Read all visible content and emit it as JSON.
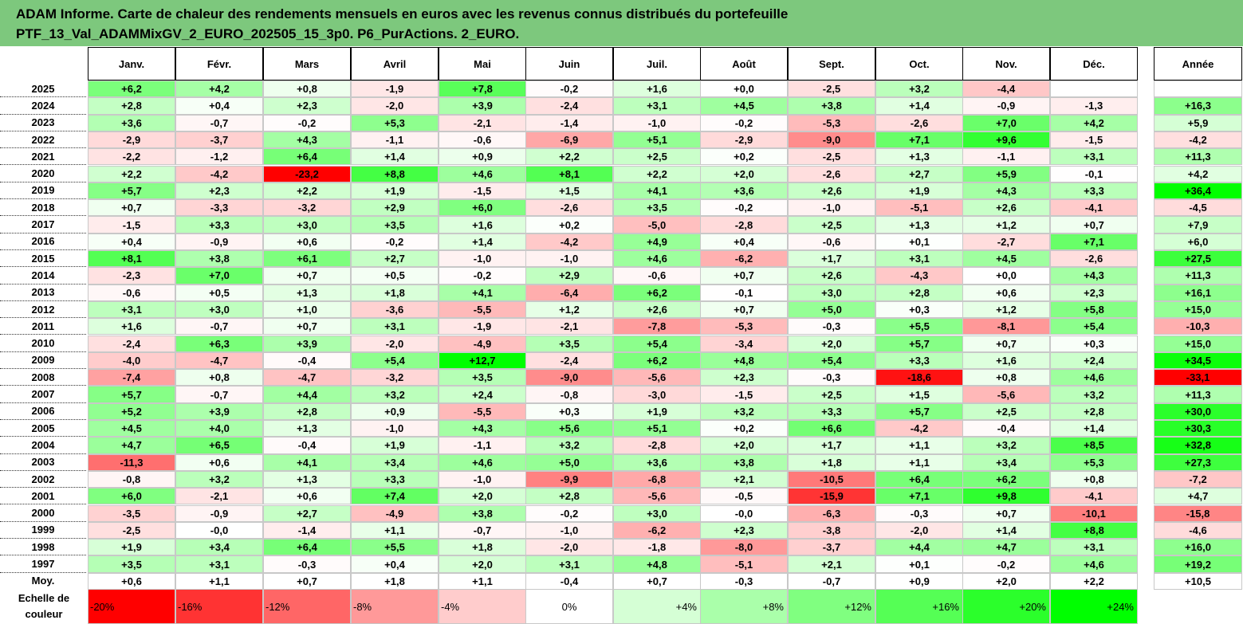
{
  "title": {
    "line1": "ADAM Informe. Carte de chaleur des rendements mensuels en euros avec les revenus connus distribués du portefeuille",
    "line2": "PTF_13_Val_ADAMMixGV_2_EURO_202505_15_3p0. P6_PurActions. 2_EURO."
  },
  "chart_data": {
    "type": "heatmap",
    "columns": [
      "Janv.",
      "Févr.",
      "Mars",
      "Avril",
      "Mai",
      "Juin",
      "Juil.",
      "Août",
      "Sept.",
      "Oct.",
      "Nov.",
      "Déc."
    ],
    "annual_header": "Année",
    "rows": [
      {
        "year": "2025",
        "values": [
          6.2,
          4.2,
          0.8,
          -1.9,
          7.8,
          -0.2,
          1.6,
          0.0,
          -2.5,
          3.2,
          -4.4,
          null
        ],
        "annual": null
      },
      {
        "year": "2024",
        "values": [
          2.8,
          0.4,
          2.3,
          -2.0,
          3.9,
          -2.4,
          3.1,
          4.5,
          3.8,
          1.4,
          -0.9,
          -1.3
        ],
        "annual": 16.3
      },
      {
        "year": "2023",
        "values": [
          3.6,
          -0.7,
          -0.2,
          5.3,
          -2.1,
          -1.4,
          -1.0,
          -0.2,
          -5.3,
          -2.6,
          7.0,
          4.2
        ],
        "annual": 5.9
      },
      {
        "year": "2022",
        "values": [
          -2.9,
          -3.7,
          4.3,
          -1.1,
          -0.6,
          -6.9,
          5.1,
          -2.9,
          -9.0,
          7.1,
          9.6,
          -1.5
        ],
        "annual": -4.2
      },
      {
        "year": "2021",
        "values": [
          -2.2,
          -1.2,
          6.4,
          1.4,
          0.9,
          2.2,
          2.5,
          0.2,
          -2.5,
          1.3,
          -1.1,
          3.1
        ],
        "annual": 11.3
      },
      {
        "year": "2020",
        "values": [
          2.2,
          -4.2,
          -23.2,
          8.8,
          4.6,
          8.1,
          2.2,
          2.0,
          -2.6,
          2.7,
          5.9,
          -0.1
        ],
        "annual": 4.2
      },
      {
        "year": "2019",
        "values": [
          5.7,
          2.3,
          2.2,
          1.9,
          -1.5,
          1.5,
          4.1,
          3.6,
          2.6,
          1.9,
          4.3,
          3.3
        ],
        "annual": 36.4
      },
      {
        "year": "2018",
        "values": [
          0.7,
          -3.3,
          -3.2,
          2.9,
          6.0,
          -2.6,
          3.5,
          -0.2,
          -1.0,
          -5.1,
          2.6,
          -4.1
        ],
        "annual": -4.5
      },
      {
        "year": "2017",
        "values": [
          -1.5,
          3.3,
          3.0,
          3.5,
          1.6,
          0.2,
          -5.0,
          -2.8,
          2.5,
          1.3,
          1.2,
          0.7
        ],
        "annual": 7.9
      },
      {
        "year": "2016",
        "values": [
          0.4,
          -0.9,
          0.6,
          -0.2,
          1.4,
          -4.2,
          4.9,
          0.4,
          -0.6,
          0.1,
          -2.7,
          7.1
        ],
        "annual": 6.0
      },
      {
        "year": "2015",
        "values": [
          8.1,
          3.8,
          6.1,
          2.7,
          -1.0,
          -1.0,
          4.6,
          -6.2,
          1.7,
          3.1,
          4.5,
          -2.6
        ],
        "annual": 27.5
      },
      {
        "year": "2014",
        "values": [
          -2.3,
          7.0,
          0.7,
          0.5,
          -0.2,
          2.9,
          -0.6,
          0.7,
          2.6,
          -4.3,
          0.0,
          4.3
        ],
        "annual": 11.3
      },
      {
        "year": "2013",
        "values": [
          -0.6,
          0.5,
          1.3,
          1.8,
          4.1,
          -6.4,
          6.2,
          -0.1,
          3.0,
          2.8,
          0.6,
          2.3
        ],
        "annual": 16.1
      },
      {
        "year": "2012",
        "values": [
          3.1,
          3.0,
          1.0,
          -3.6,
          -5.5,
          1.2,
          2.6,
          0.7,
          5.0,
          0.3,
          1.2,
          5.8
        ],
        "annual": 15.0
      },
      {
        "year": "2011",
        "values": [
          1.6,
          -0.7,
          0.7,
          3.1,
          -1.9,
          -2.1,
          -7.8,
          -5.3,
          -0.3,
          5.5,
          -8.1,
          5.4
        ],
        "annual": -10.3
      },
      {
        "year": "2010",
        "values": [
          -2.4,
          6.3,
          3.9,
          -2.0,
          -4.9,
          3.5,
          5.4,
          -3.4,
          2.0,
          5.7,
          0.7,
          0.3
        ],
        "annual": 15.0
      },
      {
        "year": "2009",
        "values": [
          -4.0,
          -4.7,
          -0.4,
          5.4,
          12.7,
          -2.4,
          6.2,
          4.8,
          5.4,
          3.3,
          1.6,
          2.4
        ],
        "annual": 34.5
      },
      {
        "year": "2008",
        "values": [
          -7.4,
          0.8,
          -4.7,
          -3.2,
          3.5,
          -9.0,
          -5.6,
          2.3,
          -0.3,
          -18.6,
          0.8,
          4.6
        ],
        "annual": -33.1
      },
      {
        "year": "2007",
        "values": [
          5.7,
          -0.7,
          4.4,
          3.2,
          2.4,
          -0.8,
          -3.0,
          -1.5,
          2.5,
          1.5,
          -5.6,
          3.2
        ],
        "annual": 11.3
      },
      {
        "year": "2006",
        "values": [
          5.2,
          3.9,
          2.8,
          0.9,
          -5.5,
          0.3,
          1.9,
          3.2,
          3.3,
          5.7,
          2.5,
          2.8
        ],
        "annual": 30.0
      },
      {
        "year": "2005",
        "values": [
          4.5,
          4.0,
          1.3,
          -1.0,
          4.3,
          5.6,
          5.1,
          0.2,
          6.6,
          -4.2,
          -0.4,
          1.4
        ],
        "annual": 30.3
      },
      {
        "year": "2004",
        "values": [
          4.7,
          6.5,
          -0.4,
          1.9,
          -1.1,
          3.2,
          -2.8,
          2.0,
          1.7,
          1.1,
          3.2,
          8.5
        ],
        "annual": 32.8
      },
      {
        "year": "2003",
        "values": [
          -11.3,
          0.6,
          4.1,
          3.4,
          4.6,
          5.0,
          3.6,
          3.8,
          1.8,
          1.1,
          3.4,
          5.3
        ],
        "annual": 27.3
      },
      {
        "year": "2002",
        "values": [
          -0.8,
          3.2,
          1.3,
          3.3,
          -1.0,
          -9.9,
          -6.8,
          2.1,
          -10.5,
          6.4,
          6.2,
          0.8
        ],
        "annual": -7.2
      },
      {
        "year": "2001",
        "values": [
          6.0,
          -2.1,
          0.6,
          7.4,
          2.0,
          2.8,
          -5.6,
          -0.5,
          -15.9,
          7.1,
          9.8,
          -4.1
        ],
        "annual": 4.7
      },
      {
        "year": "2000",
        "values": [
          -3.5,
          -0.9,
          2.7,
          -4.9,
          3.8,
          -0.2,
          3.0,
          -0.0,
          -6.3,
          -0.3,
          0.7,
          -10.1
        ],
        "annual": -15.8
      },
      {
        "year": "1999",
        "values": [
          -2.5,
          -0.0,
          -1.4,
          1.1,
          -0.7,
          -1.0,
          -6.2,
          2.3,
          -3.8,
          -2.0,
          1.4,
          8.8
        ],
        "annual": -4.6
      },
      {
        "year": "1998",
        "values": [
          1.9,
          3.4,
          6.4,
          5.5,
          1.8,
          -2.0,
          -1.8,
          -8.0,
          -3.7,
          4.4,
          4.7,
          3.1
        ],
        "annual": 16.0
      },
      {
        "year": "1997",
        "values": [
          3.5,
          3.1,
          -0.3,
          0.4,
          2.0,
          3.1,
          4.8,
          -5.1,
          2.1,
          0.1,
          -0.2,
          4.6
        ],
        "annual": 19.2
      }
    ],
    "average_row": {
      "label": "Moy.",
      "values": [
        0.6,
        1.1,
        0.7,
        1.8,
        1.1,
        -0.4,
        0.7,
        -0.3,
        -0.7,
        0.9,
        2.0,
        2.2
      ],
      "annual": 10.5
    },
    "legend": {
      "label": "Echelle de couleur",
      "steps": [
        {
          "text": "-20%",
          "value": -20
        },
        {
          "text": "-16%",
          "value": -16
        },
        {
          "text": "-12%",
          "value": -12
        },
        {
          "text": "-8%",
          "value": -8
        },
        {
          "text": "-4%",
          "value": -4
        },
        {
          "text": "0%",
          "value": 0
        },
        {
          "text": "+4%",
          "value": 4
        },
        {
          "text": "+8%",
          "value": 8
        },
        {
          "text": "+12%",
          "value": 12
        },
        {
          "text": "+16%",
          "value": 16
        },
        {
          "text": "+20%",
          "value": 20
        },
        {
          "text": "+24%",
          "value": 24
        }
      ]
    },
    "color_scale": {
      "negative": "#ff0000",
      "neutral": "#ffffff",
      "positive": "#00ff00"
    }
  }
}
